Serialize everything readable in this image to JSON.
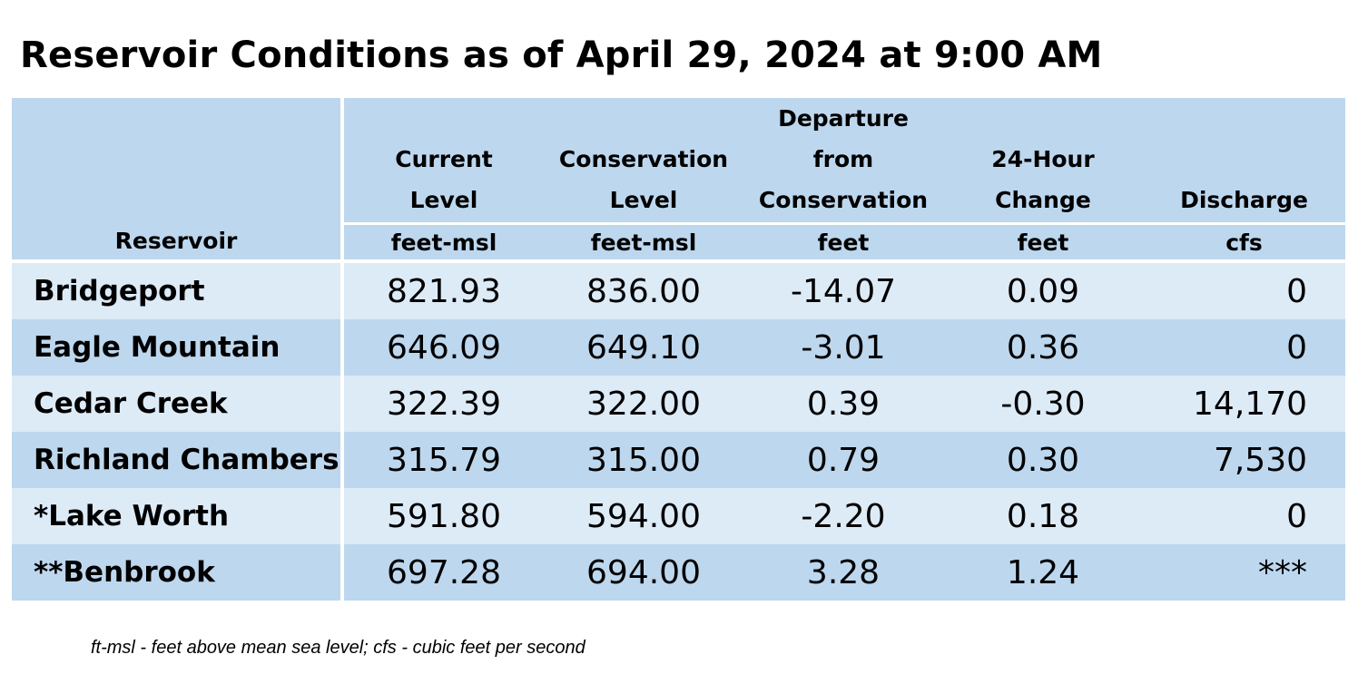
{
  "title": "Reservoir Conditions as of April 29, 2024 at 9:00 AM",
  "table": {
    "headers": [
      {
        "label": "Reservoir",
        "unit": ""
      },
      {
        "label": "Current\nLevel",
        "unit": "feet-msl"
      },
      {
        "label": "Conservation\nLevel",
        "unit": "feet-msl"
      },
      {
        "label": "Departure\nfrom\nConservation",
        "unit": "feet"
      },
      {
        "label": "24-Hour\nChange",
        "unit": "feet"
      },
      {
        "label": "Discharge",
        "unit": "cfs"
      }
    ],
    "rows": [
      {
        "name": "Bridgeport",
        "current": "821.93",
        "conservation": "836.00",
        "departure": "-14.07",
        "change": "0.09",
        "discharge": "0"
      },
      {
        "name": "Eagle Mountain",
        "current": "646.09",
        "conservation": "649.10",
        "departure": "-3.01",
        "change": "0.36",
        "discharge": "0"
      },
      {
        "name": "Cedar Creek",
        "current": "322.39",
        "conservation": "322.00",
        "departure": "0.39",
        "change": "-0.30",
        "discharge": "14,170"
      },
      {
        "name": "Richland Chambers",
        "current": "315.79",
        "conservation": "315.00",
        "departure": "0.79",
        "change": "0.30",
        "discharge": "7,530"
      },
      {
        "name": "*Lake Worth",
        "current": "591.80",
        "conservation": "594.00",
        "departure": "-2.20",
        "change": "0.18",
        "discharge": "0"
      },
      {
        "name": "**Benbrook",
        "current": "697.28",
        "conservation": "694.00",
        "departure": "3.28",
        "change": "1.24",
        "discharge": "***"
      }
    ]
  },
  "footnote": "ft-msl - feet above mean sea level; cfs - cubic feet per second",
  "colors": {
    "header_bg": "#bdd7ee",
    "row_light": "#ddebf7",
    "row_dark": "#bdd7ee"
  }
}
